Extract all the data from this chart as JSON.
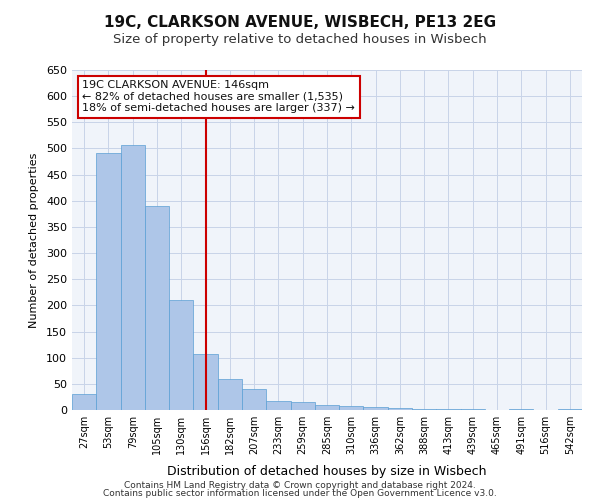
{
  "title_line1": "19C, CLARKSON AVENUE, WISBECH, PE13 2EG",
  "title_line2": "Size of property relative to detached houses in Wisbech",
  "xlabel": "Distribution of detached houses by size in Wisbech",
  "ylabel": "Number of detached properties",
  "footer_line1": "Contains HM Land Registry data © Crown copyright and database right 2024.",
  "footer_line2": "Contains public sector information licensed under the Open Government Licence v3.0.",
  "annotation_line1": "19C CLARKSON AVENUE: 146sqm",
  "annotation_line2": "← 82% of detached houses are smaller (1,535)",
  "annotation_line3": "18% of semi-detached houses are larger (337) →",
  "bar_color": "#aec6e8",
  "bar_edge_color": "#5a9fd4",
  "red_line_color": "#cc0000",
  "background_color": "#f0f4fa",
  "grid_color": "#c8d4e8",
  "categories": [
    "27sqm",
    "53sqm",
    "79sqm",
    "105sqm",
    "130sqm",
    "156sqm",
    "182sqm",
    "207sqm",
    "233sqm",
    "259sqm",
    "285sqm",
    "310sqm",
    "336sqm",
    "362sqm",
    "388sqm",
    "413sqm",
    "439sqm",
    "465sqm",
    "491sqm",
    "516sqm",
    "542sqm"
  ],
  "values": [
    30,
    492,
    507,
    390,
    210,
    107,
    60,
    40,
    18,
    15,
    10,
    8,
    6,
    4,
    2,
    1,
    1,
    0,
    1,
    0,
    2
  ],
  "red_line_index": 5,
  "ylim": [
    0,
    650
  ],
  "yticks": [
    0,
    50,
    100,
    150,
    200,
    250,
    300,
    350,
    400,
    450,
    500,
    550,
    600,
    650
  ]
}
